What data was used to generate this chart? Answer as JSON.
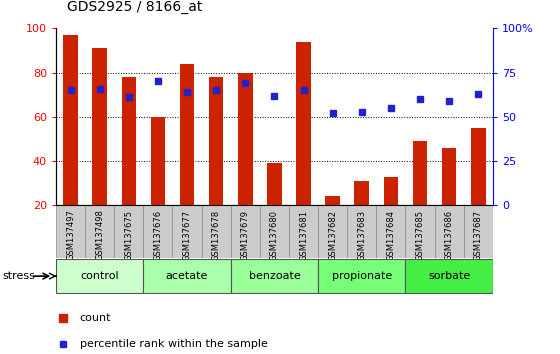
{
  "title": "GDS2925 / 8166_at",
  "categories": [
    "GSM137497",
    "GSM137498",
    "GSM137675",
    "GSM137676",
    "GSM137677",
    "GSM137678",
    "GSM137679",
    "GSM137680",
    "GSM137681",
    "GSM137682",
    "GSM137683",
    "GSM137684",
    "GSM137685",
    "GSM137686",
    "GSM137687"
  ],
  "bar_values": [
    97,
    91,
    78,
    60,
    84,
    78,
    80,
    39,
    94,
    24,
    31,
    33,
    49,
    46,
    55
  ],
  "dot_values": [
    65,
    66,
    61,
    70,
    64,
    65,
    69,
    62,
    65,
    52,
    53,
    55,
    60,
    59,
    63
  ],
  "bar_color": "#cc2200",
  "dot_color": "#2222cc",
  "ylim_left": [
    20,
    100
  ],
  "ylim_right": [
    0,
    100
  ],
  "yticks_left": [
    20,
    40,
    60,
    80,
    100
  ],
  "yticks_right": [
    0,
    25,
    50,
    75,
    100
  ],
  "ytick_labels_right": [
    "0",
    "25",
    "50",
    "75",
    "100%"
  ],
  "grid_yticks": [
    40,
    60,
    80
  ],
  "groups": [
    {
      "label": "control",
      "start": 0,
      "end": 2,
      "color": "#ccffcc"
    },
    {
      "label": "acetate",
      "start": 3,
      "end": 5,
      "color": "#aaffaa"
    },
    {
      "label": "benzoate",
      "start": 6,
      "end": 8,
      "color": "#99ff99"
    },
    {
      "label": "propionate",
      "start": 9,
      "end": 11,
      "color": "#77ff77"
    },
    {
      "label": "sorbate",
      "start": 12,
      "end": 14,
      "color": "#44ee44"
    }
  ],
  "stress_label": "stress",
  "legend_count": "count",
  "legend_percentile": "percentile rank within the sample",
  "plot_bg": "#ffffff",
  "tick_bg": "#cccccc",
  "figure_bg": "#ffffff"
}
